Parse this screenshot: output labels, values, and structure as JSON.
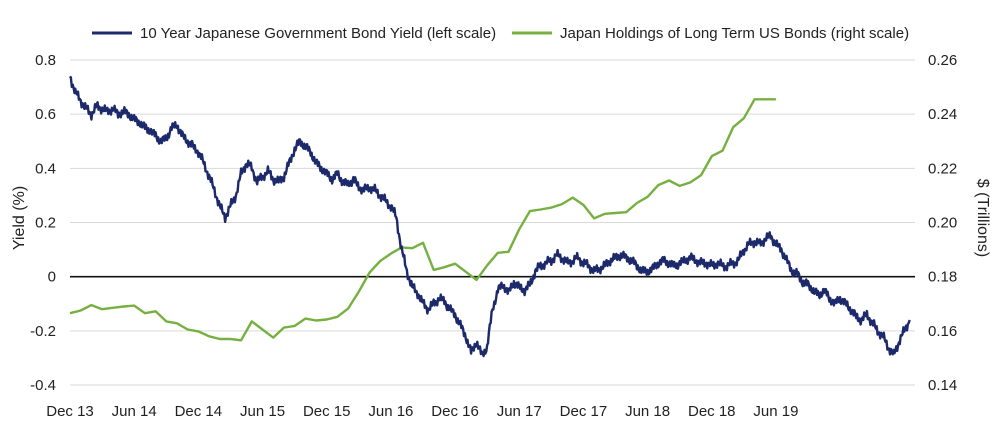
{
  "chart_data": {
    "type": "line",
    "title": "",
    "xlabel": "",
    "ylabel_left": "Yield (%)",
    "ylabel_right": "$ (Trillions)",
    "x_tick_labels": [
      "Dec 13",
      "Jun 14",
      "Dec 14",
      "Jun 15",
      "Dec 15",
      "Jun 16",
      "Dec 16",
      "Jun 17",
      "Dec 17",
      "Jun 18",
      "Dec 18",
      "Jun 19"
    ],
    "x_range_months": [
      0,
      79
    ],
    "ylim_left": [
      -0.4,
      0.8
    ],
    "yticks_left": [
      "0.8",
      "0.6",
      "0.4",
      "0.2",
      "0",
      "-0.2",
      "-0.4"
    ],
    "ylim_right": [
      0.14,
      0.26
    ],
    "yticks_right": [
      "0.26",
      "0.24",
      "0.22",
      "0.20",
      "0.18",
      "0.16",
      "0.14"
    ],
    "grid": "horizontal",
    "legend_position": "top",
    "series": [
      {
        "name": "10 Year Japanese Government Bond Yield (left scale)",
        "axis": "left",
        "color": "#1c2a6b",
        "points": [
          [
            0,
            0.74
          ],
          [
            0.5,
            0.68
          ],
          [
            1,
            0.65
          ],
          [
            1.5,
            0.62
          ],
          [
            2,
            0.6
          ],
          [
            2.5,
            0.63
          ],
          [
            3,
            0.62
          ],
          [
            3.5,
            0.61
          ],
          [
            4,
            0.62
          ],
          [
            4.5,
            0.6
          ],
          [
            5,
            0.61
          ],
          [
            5.5,
            0.6
          ],
          [
            6,
            0.58
          ],
          [
            6.5,
            0.57
          ],
          [
            7,
            0.55
          ],
          [
            7.5,
            0.54
          ],
          [
            8,
            0.52
          ],
          [
            8.5,
            0.5
          ],
          [
            9,
            0.51
          ],
          [
            9.5,
            0.55
          ],
          [
            10,
            0.56
          ],
          [
            10.5,
            0.52
          ],
          [
            11,
            0.5
          ],
          [
            11.5,
            0.48
          ],
          [
            12,
            0.46
          ],
          [
            12.5,
            0.42
          ],
          [
            13,
            0.37
          ],
          [
            13.5,
            0.32
          ],
          [
            14,
            0.26
          ],
          [
            14.5,
            0.22
          ],
          [
            15,
            0.26
          ],
          [
            15.5,
            0.3
          ],
          [
            16,
            0.38
          ],
          [
            16.5,
            0.42
          ],
          [
            17,
            0.4
          ],
          [
            17.5,
            0.35
          ],
          [
            18,
            0.37
          ],
          [
            18.5,
            0.39
          ],
          [
            19,
            0.36
          ],
          [
            19.5,
            0.35
          ],
          [
            20,
            0.37
          ],
          [
            20.5,
            0.42
          ],
          [
            21,
            0.47
          ],
          [
            21.5,
            0.5
          ],
          [
            22,
            0.48
          ],
          [
            22.5,
            0.46
          ],
          [
            23,
            0.42
          ],
          [
            23.5,
            0.4
          ],
          [
            24,
            0.38
          ],
          [
            24.5,
            0.36
          ],
          [
            25,
            0.38
          ],
          [
            25.5,
            0.35
          ],
          [
            26,
            0.34
          ],
          [
            26.5,
            0.36
          ],
          [
            27,
            0.33
          ],
          [
            27.5,
            0.32
          ],
          [
            28,
            0.33
          ],
          [
            28.5,
            0.32
          ],
          [
            29,
            0.3
          ],
          [
            29.5,
            0.28
          ],
          [
            30,
            0.26
          ],
          [
            30.5,
            0.22
          ],
          [
            31,
            0.1
          ],
          [
            31.5,
            0.02
          ],
          [
            32,
            -0.04
          ],
          [
            32.5,
            -0.06
          ],
          [
            33,
            -0.1
          ],
          [
            33.5,
            -0.12
          ],
          [
            34,
            -0.1
          ],
          [
            34.5,
            -0.08
          ],
          [
            35,
            -0.09
          ],
          [
            35.5,
            -0.12
          ],
          [
            36,
            -0.14
          ],
          [
            36.5,
            -0.18
          ],
          [
            37,
            -0.22
          ],
          [
            37.5,
            -0.28
          ],
          [
            38,
            -0.24
          ],
          [
            38.5,
            -0.29
          ],
          [
            39,
            -0.26
          ],
          [
            39.5,
            -0.12
          ],
          [
            40,
            -0.05
          ],
          [
            40.5,
            -0.03
          ],
          [
            41,
            -0.06
          ],
          [
            41.5,
            -0.02
          ],
          [
            42,
            -0.04
          ],
          [
            42.5,
            -0.05
          ],
          [
            43,
            -0.03
          ],
          [
            43.5,
            0.02
          ],
          [
            44,
            0.04
          ],
          [
            44.5,
            0.05
          ],
          [
            45,
            0.06
          ],
          [
            45.5,
            0.08
          ],
          [
            46,
            0.07
          ],
          [
            46.5,
            0.05
          ],
          [
            47,
            0.06
          ],
          [
            47.5,
            0.07
          ],
          [
            48,
            0.05
          ],
          [
            48.5,
            0.04
          ],
          [
            49,
            0.02
          ],
          [
            49.5,
            0.03
          ],
          [
            50,
            0.04
          ],
          [
            50.5,
            0.06
          ],
          [
            51,
            0.07
          ],
          [
            51.5,
            0.08
          ],
          [
            52,
            0.07
          ],
          [
            52.5,
            0.06
          ],
          [
            53,
            0.04
          ],
          [
            53.5,
            0.02
          ],
          [
            54,
            0.02
          ],
          [
            54.5,
            0.03
          ],
          [
            55,
            0.05
          ],
          [
            55.5,
            0.06
          ],
          [
            56,
            0.05
          ],
          [
            56.5,
            0.04
          ],
          [
            57,
            0.05
          ],
          [
            57.5,
            0.06
          ],
          [
            58,
            0.07
          ],
          [
            58.5,
            0.06
          ],
          [
            59,
            0.05
          ],
          [
            59.5,
            0.05
          ],
          [
            60,
            0.04
          ],
          [
            60.5,
            0.05
          ],
          [
            61,
            0.04
          ],
          [
            61.5,
            0.04
          ],
          [
            62,
            0.05
          ],
          [
            62.5,
            0.06
          ],
          [
            63,
            0.1
          ],
          [
            63.5,
            0.12
          ],
          [
            64,
            0.13
          ],
          [
            64.5,
            0.12
          ],
          [
            65,
            0.14
          ],
          [
            65.5,
            0.15
          ],
          [
            66,
            0.12
          ],
          [
            66.5,
            0.1
          ],
          [
            67,
            0.06
          ],
          [
            67.5,
            0.02
          ],
          [
            68,
            0.01
          ],
          [
            68.5,
            -0.02
          ],
          [
            69,
            -0.03
          ],
          [
            69.5,
            -0.05
          ],
          [
            70,
            -0.07
          ],
          [
            70.5,
            -0.05
          ],
          [
            71,
            -0.08
          ],
          [
            71.5,
            -0.1
          ],
          [
            72,
            -0.08
          ],
          [
            72.5,
            -0.1
          ],
          [
            73,
            -0.12
          ],
          [
            73.5,
            -0.15
          ],
          [
            74,
            -0.16
          ],
          [
            74.5,
            -0.14
          ],
          [
            75,
            -0.17
          ],
          [
            75.5,
            -0.2
          ],
          [
            76,
            -0.22
          ],
          [
            76.5,
            -0.26
          ],
          [
            77,
            -0.29
          ],
          [
            77.5,
            -0.24
          ],
          [
            78,
            -0.2
          ],
          [
            78.5,
            -0.16
          ]
        ]
      },
      {
        "name": "Japan Holdings of Long Term US Bonds (right scale)",
        "axis": "right",
        "color": "#76b041",
        "points": [
          [
            0,
            0.1665
          ],
          [
            1,
            0.1675
          ],
          [
            2,
            0.1695
          ],
          [
            3,
            0.168
          ],
          [
            4,
            0.1685
          ],
          [
            5,
            0.169
          ],
          [
            6,
            0.1693
          ],
          [
            7,
            0.1665
          ],
          [
            8,
            0.1672
          ],
          [
            9,
            0.1635
          ],
          [
            10,
            0.1628
          ],
          [
            11,
            0.1605
          ],
          [
            12,
            0.1598
          ],
          [
            13,
            0.158
          ],
          [
            14,
            0.157
          ],
          [
            15,
            0.157
          ],
          [
            16,
            0.1565
          ],
          [
            17,
            0.1635
          ],
          [
            18,
            0.1605
          ],
          [
            19,
            0.1575
          ],
          [
            20,
            0.1612
          ],
          [
            21,
            0.1618
          ],
          [
            22,
            0.1645
          ],
          [
            23,
            0.1638
          ],
          [
            24,
            0.1642
          ],
          [
            25,
            0.1652
          ],
          [
            26,
            0.1682
          ],
          [
            27,
            0.1745
          ],
          [
            28,
            0.1815
          ],
          [
            29,
            0.1858
          ],
          [
            30,
            0.1885
          ],
          [
            31,
            0.1908
          ],
          [
            32,
            0.1905
          ],
          [
            33,
            0.1925
          ],
          [
            34,
            0.1825
          ],
          [
            35,
            0.1835
          ],
          [
            36,
            0.1848
          ],
          [
            37,
            0.1818
          ],
          [
            38,
            0.1788
          ],
          [
            39,
            0.1842
          ],
          [
            40,
            0.1888
          ],
          [
            41,
            0.1892
          ],
          [
            42,
            0.1975
          ],
          [
            43,
            0.2042
          ],
          [
            44,
            0.2048
          ],
          [
            45,
            0.2055
          ],
          [
            46,
            0.2068
          ],
          [
            47,
            0.2092
          ],
          [
            48,
            0.2065
          ],
          [
            49,
            0.2015
          ],
          [
            50,
            0.2032
          ],
          [
            51,
            0.2035
          ],
          [
            52,
            0.2038
          ],
          [
            53,
            0.2072
          ],
          [
            54,
            0.2095
          ],
          [
            55,
            0.2138
          ],
          [
            56,
            0.2155
          ],
          [
            57,
            0.2135
          ],
          [
            58,
            0.2148
          ],
          [
            59,
            0.2175
          ],
          [
            60,
            0.2245
          ],
          [
            61,
            0.2265
          ],
          [
            62,
            0.2352
          ],
          [
            63,
            0.2385
          ],
          [
            64,
            0.2455
          ],
          [
            65,
            0.2455
          ],
          [
            66,
            0.2455
          ]
        ]
      }
    ]
  }
}
